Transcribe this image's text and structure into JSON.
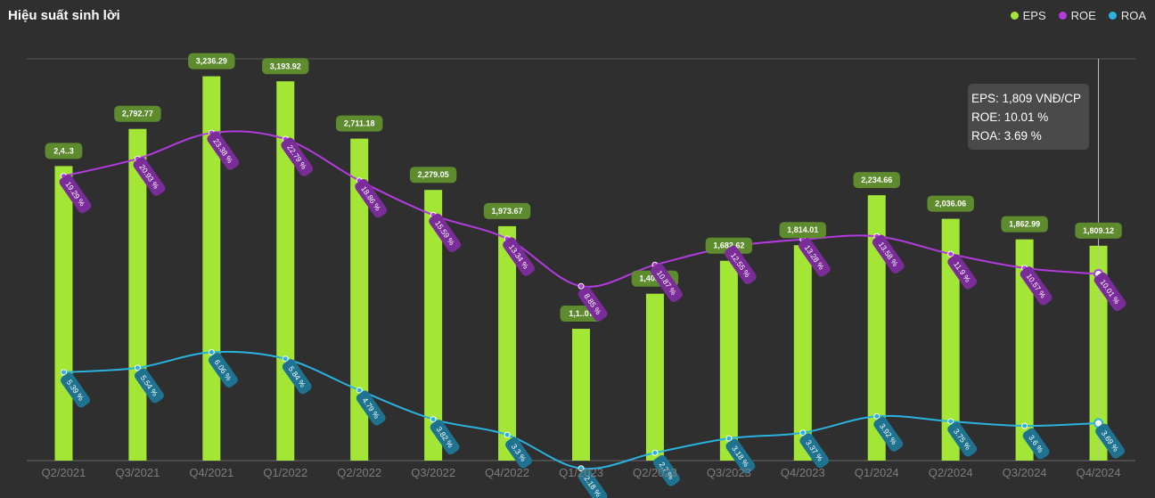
{
  "title": "Hiệu suất sinh lời",
  "legend": [
    {
      "label": "EPS",
      "color": "#a3e635"
    },
    {
      "label": "ROE",
      "color": "#b23be0"
    },
    {
      "label": "ROA",
      "color": "#2ab2df"
    }
  ],
  "tooltip": {
    "eps": "EPS: 1,809 VNĐ/CP",
    "roe": "ROE: 10.01 %",
    "roa": "ROA: 3.69 %"
  },
  "chart_data": {
    "type": "bar",
    "categories": [
      "Q2/2021",
      "Q3/2021",
      "Q4/2021",
      "Q1/2022",
      "Q2/2022",
      "Q3/2022",
      "Q4/2022",
      "Q1/2023",
      "Q2/2023",
      "Q3/2023",
      "Q4/2023",
      "Q1/2024",
      "Q2/2024",
      "Q3/2024",
      "Q4/2024"
    ],
    "series": [
      {
        "name": "EPS",
        "type": "bar",
        "values": [
          2480,
          2792.77,
          3236.29,
          3193.92,
          2711.18,
          2279.05,
          1973.67,
          1110,
          1405.06,
          1682.62,
          1814.01,
          2234.66,
          2036.06,
          1862.99,
          1809.12
        ],
        "labels": [
          "2,4..3",
          "2,792.77",
          "3,236.29",
          "3,193.92",
          "2,711.18",
          "2,279.05",
          "1,973.67",
          "1,1..07",
          "1,405.06",
          "1,682.62",
          "1,814.01",
          "2,234.66",
          "2,036.06",
          "1,862.99",
          "1,809.12"
        ]
      },
      {
        "name": "ROE",
        "type": "line",
        "values": [
          19.29,
          20.93,
          23.38,
          22.79,
          18.86,
          15.59,
          13.34,
          8.85,
          10.87,
          12.55,
          13.28,
          13.58,
          11.9,
          10.57,
          10.01
        ],
        "labels": [
          "19.29 %",
          "20.93 %",
          "23.38 %",
          "22.79 %",
          "18.86 %",
          "15.59 %",
          "13.34 %",
          "8.85 %",
          "10.87 %",
          "12.55 %",
          "13.28 %",
          "13.58 %",
          "11.9 %",
          "10.57 %",
          "10.01 %"
        ]
      },
      {
        "name": "ROA",
        "type": "line",
        "values": [
          5.39,
          5.54,
          6.06,
          5.84,
          4.79,
          3.82,
          3.3,
          2.18,
          2.7,
          3.18,
          3.37,
          3.92,
          3.75,
          3.6,
          3.69
        ],
        "labels": [
          "5.39 %",
          "5.54 %",
          "6.06 %",
          "5.84 %",
          "4.79 %",
          "3.82 %",
          "3.3 %",
          "2.18 %",
          "2.7 %",
          "3.18 %",
          "3.37 %",
          "3.92 %",
          "3.75 %",
          "3.6 %",
          "3.69 %"
        ]
      }
    ],
    "highlight_index": 14,
    "grid": false
  }
}
